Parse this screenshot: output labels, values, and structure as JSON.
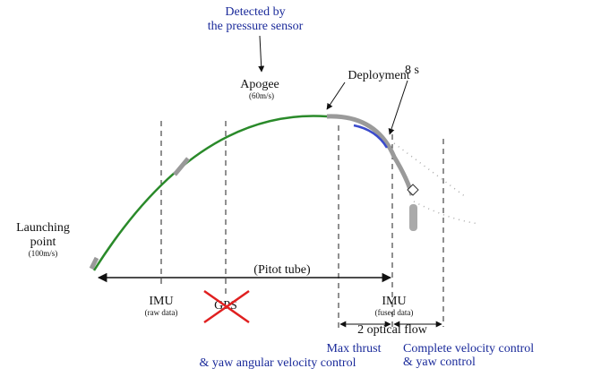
{
  "sensor_note": {
    "line1": "Detected by",
    "line2": "the pressure sensor"
  },
  "apogee": {
    "label": "Apogee",
    "speed": "(60m/s)"
  },
  "deployment": "Deployment",
  "timer": "8 s",
  "launch": {
    "line1": "Launching",
    "line2": "point",
    "speed": "(100m/s)"
  },
  "pitot": "(Pitot tube)",
  "imu_raw": {
    "label": "IMU",
    "sub": "(raw data)"
  },
  "gps": "GPS",
  "imu_fused": {
    "label": "IMU",
    "sub": "(fused data)"
  },
  "optical_flow": "2 optical flow",
  "phase_max_thrust": {
    "line1": "Max thrust",
    "line2": "& yaw angular velocity control"
  },
  "phase_complete": {
    "line1": "Complete velocity control",
    "line2": "& yaw control"
  }
}
